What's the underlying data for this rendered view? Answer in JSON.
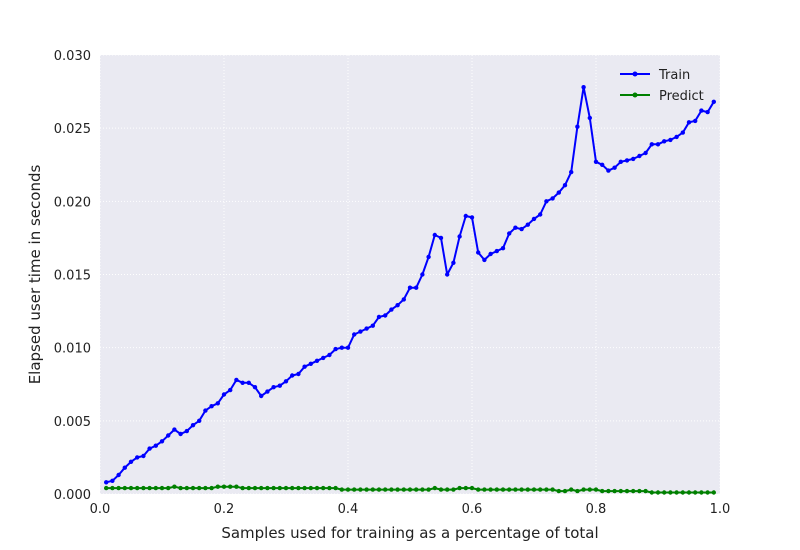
{
  "chart_data": {
    "type": "line",
    "title": "",
    "xlabel": "Samples used for training as a percentage of total",
    "ylabel": "Elapsed user time in seconds",
    "xlim": [
      0.0,
      1.0
    ],
    "ylim": [
      0.0,
      0.03
    ],
    "xticks": [
      0.0,
      0.2,
      0.4,
      0.6,
      0.8,
      1.0
    ],
    "xtick_labels": [
      "0.0",
      "0.2",
      "0.4",
      "0.6",
      "0.8",
      "1.0"
    ],
    "yticks": [
      0.0,
      0.005,
      0.01,
      0.015,
      0.02,
      0.025,
      0.03
    ],
    "ytick_labels": [
      "0.000",
      "0.005",
      "0.010",
      "0.015",
      "0.020",
      "0.025",
      "0.030"
    ],
    "grid": true,
    "legend_position": "top-right",
    "background_color": "#eaeaf2",
    "x": [
      0.01,
      0.02,
      0.03,
      0.04,
      0.05,
      0.06,
      0.07,
      0.08,
      0.09,
      0.1,
      0.11,
      0.12,
      0.13,
      0.14,
      0.15,
      0.16,
      0.17,
      0.18,
      0.19,
      0.2,
      0.21,
      0.22,
      0.23,
      0.24,
      0.25,
      0.26,
      0.27,
      0.28,
      0.29,
      0.3,
      0.31,
      0.32,
      0.33,
      0.34,
      0.35,
      0.36,
      0.37,
      0.38,
      0.39,
      0.4,
      0.41,
      0.42,
      0.43,
      0.44,
      0.45,
      0.46,
      0.47,
      0.48,
      0.49,
      0.5,
      0.51,
      0.52,
      0.53,
      0.54,
      0.55,
      0.56,
      0.57,
      0.58,
      0.59,
      0.6,
      0.61,
      0.62,
      0.63,
      0.64,
      0.65,
      0.66,
      0.67,
      0.68,
      0.69,
      0.7,
      0.71,
      0.72,
      0.73,
      0.74,
      0.75,
      0.76,
      0.77,
      0.78,
      0.79,
      0.8,
      0.81,
      0.82,
      0.83,
      0.84,
      0.85,
      0.86,
      0.87,
      0.88,
      0.89,
      0.9,
      0.91,
      0.92,
      0.93,
      0.94,
      0.95,
      0.96,
      0.97,
      0.98,
      0.99
    ],
    "series": [
      {
        "name": "Train",
        "color": "#0000ff",
        "values": [
          0.0008,
          0.0009,
          0.0013,
          0.0018,
          0.0022,
          0.0025,
          0.0026,
          0.0031,
          0.0033,
          0.0036,
          0.004,
          0.0044,
          0.0041,
          0.0043,
          0.0047,
          0.005,
          0.0057,
          0.006,
          0.0062,
          0.0068,
          0.0071,
          0.0078,
          0.0076,
          0.0076,
          0.0073,
          0.0067,
          0.007,
          0.0073,
          0.0074,
          0.0077,
          0.0081,
          0.0082,
          0.0087,
          0.0089,
          0.0091,
          0.0093,
          0.0095,
          0.0099,
          0.01,
          0.01,
          0.0109,
          0.0111,
          0.0113,
          0.0115,
          0.0121,
          0.0122,
          0.0126,
          0.0129,
          0.0133,
          0.0141,
          0.0141,
          0.015,
          0.0162,
          0.0177,
          0.0175,
          0.015,
          0.0158,
          0.0176,
          0.019,
          0.0189,
          0.0165,
          0.016,
          0.0164,
          0.0166,
          0.0168,
          0.0178,
          0.0182,
          0.0181,
          0.0184,
          0.0188,
          0.0191,
          0.02,
          0.0202,
          0.0206,
          0.0211,
          0.022,
          0.0251,
          0.0278,
          0.0257,
          0.0227,
          0.0225,
          0.0221,
          0.0223,
          0.0227,
          0.0228,
          0.0229,
          0.0231,
          0.0233,
          0.0239,
          0.0239,
          0.0241,
          0.0242,
          0.0244,
          0.0247,
          0.0254,
          0.0255,
          0.0262,
          0.0261,
          0.0268
        ]
      },
      {
        "name": "Predict",
        "color": "#008000",
        "values": [
          0.0004,
          0.0004,
          0.0004,
          0.0004,
          0.0004,
          0.0004,
          0.0004,
          0.0004,
          0.0004,
          0.0004,
          0.0004,
          0.0005,
          0.0004,
          0.0004,
          0.0004,
          0.0004,
          0.0004,
          0.0004,
          0.0005,
          0.0005,
          0.0005,
          0.0005,
          0.0004,
          0.0004,
          0.0004,
          0.0004,
          0.0004,
          0.0004,
          0.0004,
          0.0004,
          0.0004,
          0.0004,
          0.0004,
          0.0004,
          0.0004,
          0.0004,
          0.0004,
          0.0004,
          0.0003,
          0.0003,
          0.0003,
          0.0003,
          0.0003,
          0.0003,
          0.0003,
          0.0003,
          0.0003,
          0.0003,
          0.0003,
          0.0003,
          0.0003,
          0.0003,
          0.0003,
          0.0004,
          0.0003,
          0.0003,
          0.0003,
          0.0004,
          0.0004,
          0.0004,
          0.0003,
          0.0003,
          0.0003,
          0.0003,
          0.0003,
          0.0003,
          0.0003,
          0.0003,
          0.0003,
          0.0003,
          0.0003,
          0.0003,
          0.0003,
          0.0002,
          0.0002,
          0.0003,
          0.0002,
          0.0003,
          0.0003,
          0.0003,
          0.0002,
          0.0002,
          0.0002,
          0.0002,
          0.0002,
          0.0002,
          0.0002,
          0.0002,
          0.0001,
          0.0001,
          0.0001,
          0.0001,
          0.0001,
          0.0001,
          0.0001,
          0.0001,
          0.0001,
          0.0001,
          0.0001
        ]
      }
    ]
  }
}
